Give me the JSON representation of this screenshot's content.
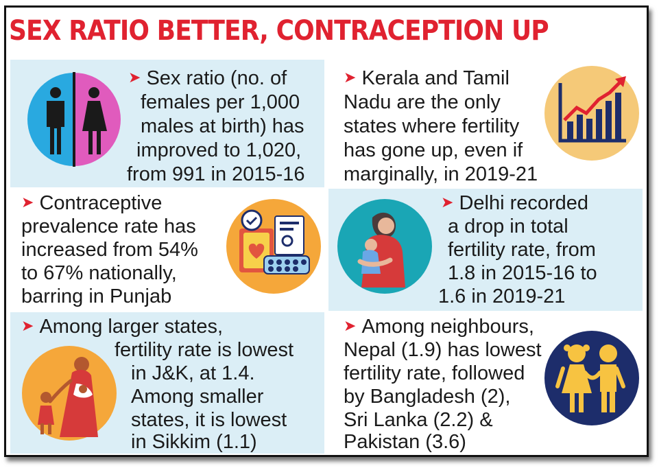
{
  "title": "SEX RATIO BETTER, CONTRACEPTION UP",
  "bullet_glyph": "➤",
  "colors": {
    "headline_red": "#e02230",
    "panel_blue": "#dbeef6",
    "icon_orange": "#f5a73a",
    "icon_teal": "#1aa6b5",
    "icon_navy": "#1d2d6b"
  },
  "facts": [
    {
      "icon": "male-female-restroom-icon",
      "lines": [
        "Sex ratio (no. of",
        "females per 1,000",
        "males at birth) has",
        "improved to 1,020,",
        "from 991 in 2015-16"
      ]
    },
    {
      "icon": "rising-bar-chart-icon",
      "lines": [
        "Kerala and Tamil",
        "Nadu are the only",
        "states where fertility",
        "has gone up, even if",
        "marginally, in 2019-21"
      ]
    },
    {
      "icon": "contraceptives-icon",
      "lines": [
        "Contraceptive",
        "prevalence rate has",
        "increased from 54%",
        "to 67% nationally,",
        "barring in Punjab"
      ]
    },
    {
      "icon": "mother-baby-icon",
      "lines": [
        "Delhi recorded",
        "a drop in total",
        "fertility rate, from",
        "1.8 in 2015-16 to",
        "1.6 in 2019-21"
      ]
    },
    {
      "icon": "mother-children-icon",
      "lines": [
        "Among larger states,",
        "fertility rate is lowest",
        "in J&K, at 1.4.",
        "Among smaller",
        "states, it is lowest",
        "in Sikkim (1.1)"
      ]
    },
    {
      "icon": "two-children-icon",
      "lines": [
        "Among neighbours,",
        "Nepal (1.9) has lowest",
        "fertility rate, followed",
        "by Bangladesh (2),",
        "Sri Lanka (2.2) &",
        "Pakistan (3.6)"
      ]
    }
  ]
}
